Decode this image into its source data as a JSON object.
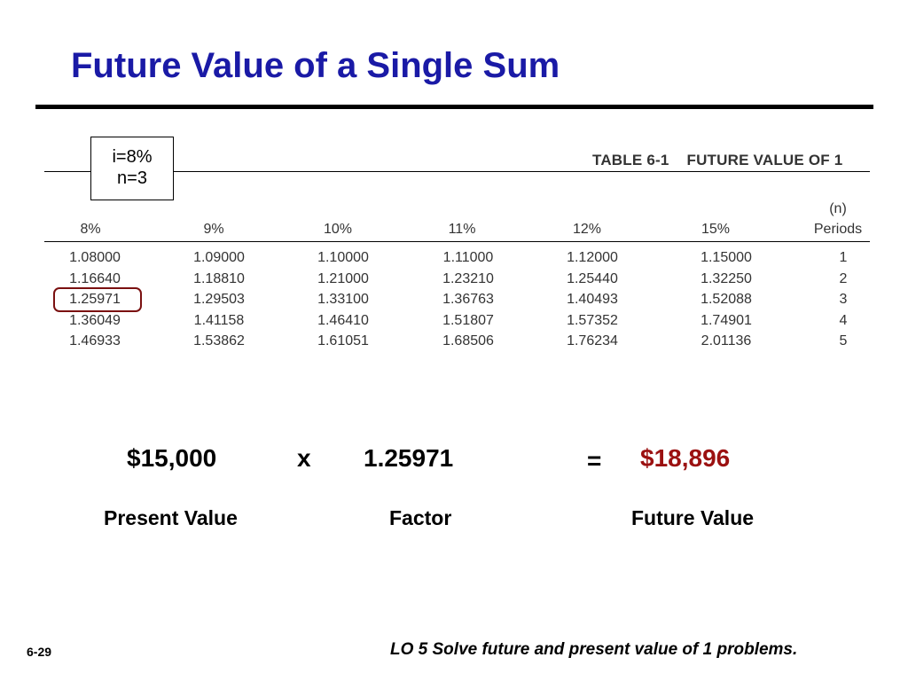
{
  "title": "Future Value of a Single Sum",
  "params": {
    "rate": "i=8%",
    "periods": "n=3"
  },
  "table": {
    "caption_id": "TABLE 6-1",
    "caption_name": "FUTURE VALUE OF 1",
    "rate_headers": [
      "8%",
      "9%",
      "10%",
      "11%",
      "12%",
      "15%"
    ],
    "periods_header_n": "(n)",
    "periods_header": "Periods",
    "rows": [
      [
        "1.08000",
        "1.09000",
        "1.10000",
        "1.11000",
        "1.12000",
        "1.15000",
        "1"
      ],
      [
        "1.16640",
        "1.18810",
        "1.21000",
        "1.23210",
        "1.25440",
        "1.32250",
        "2"
      ],
      [
        "1.25971",
        "1.29503",
        "1.33100",
        "1.36763",
        "1.40493",
        "1.52088",
        "3"
      ],
      [
        "1.36049",
        "1.41158",
        "1.46410",
        "1.51807",
        "1.57352",
        "1.74901",
        "4"
      ],
      [
        "1.46933",
        "1.53862",
        "1.61051",
        "1.68506",
        "1.76234",
        "2.01136",
        "5"
      ]
    ]
  },
  "calculation": {
    "present_value": "$15,000",
    "times": "x",
    "factor": "1.25971",
    "equals": "=",
    "future_value": "$18,896",
    "present_value_label": "Present Value",
    "factor_label": "Factor",
    "future_value_label": "Future Value"
  },
  "footer": {
    "slide_number": "6-29",
    "objective": "LO 5  Solve future and present value of 1 problems."
  },
  "colors": {
    "title": "#1a1aa6",
    "result": "#9b1111",
    "highlight": "#7a1010"
  }
}
